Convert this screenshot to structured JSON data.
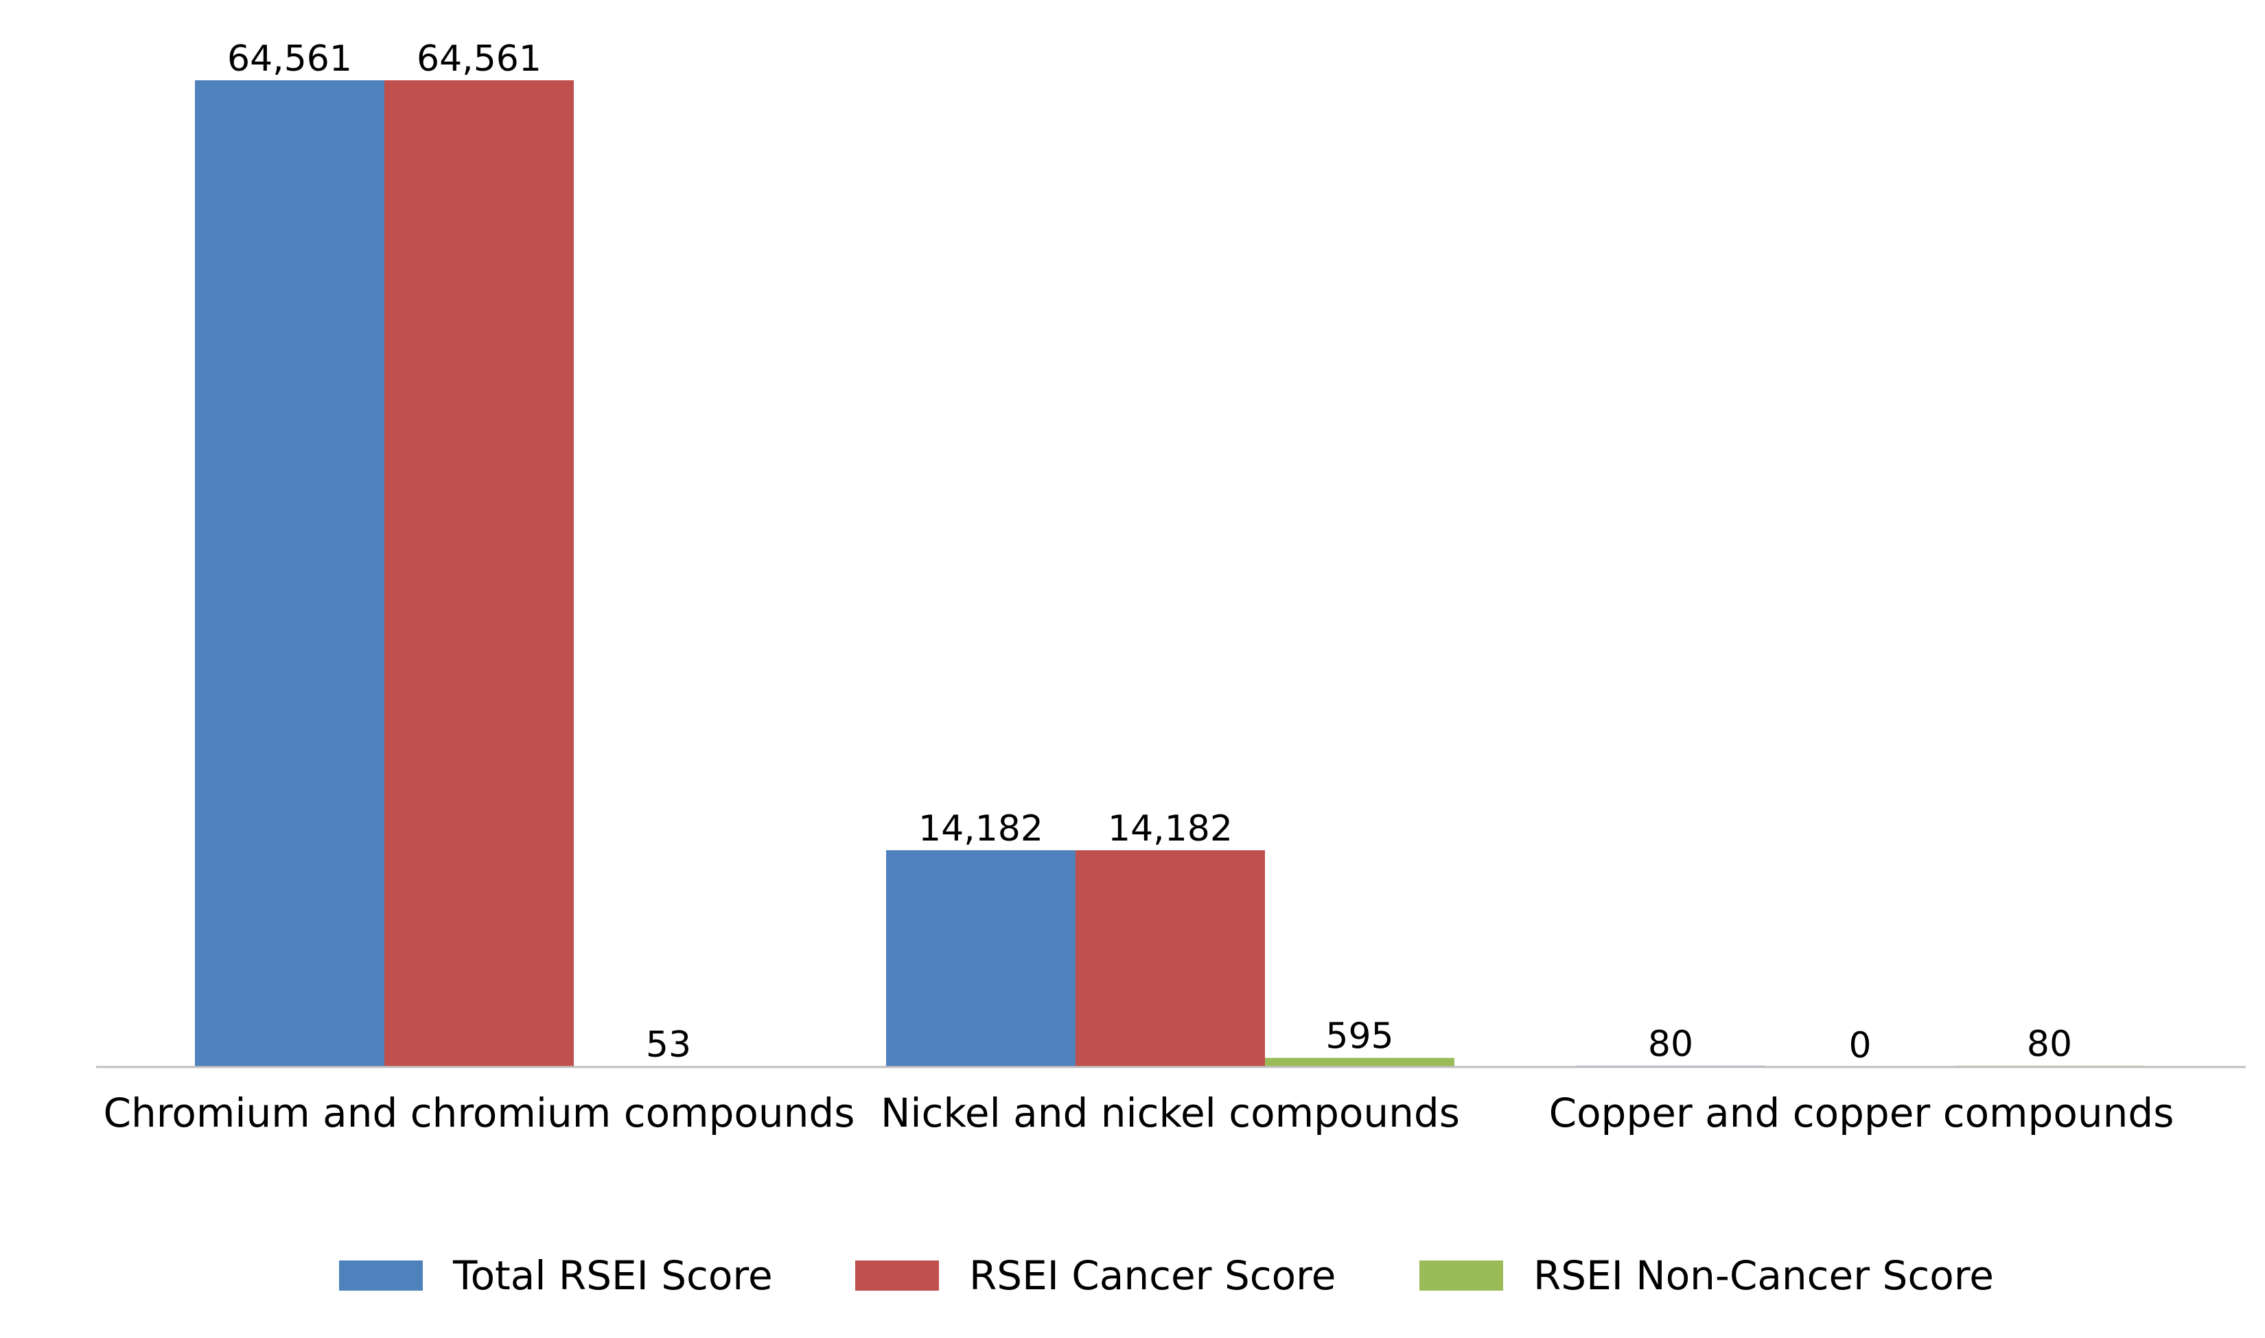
{
  "chart_data": {
    "type": "bar",
    "categories": [
      "Chromium and chromium compounds",
      "Nickel and nickel compounds",
      "Copper and copper compounds"
    ],
    "series": [
      {
        "name": "Total RSEI Score",
        "color": "#4F81BD",
        "values": [
          64561,
          14182,
          80
        ],
        "labels": [
          "64,561",
          "14,182",
          "80"
        ]
      },
      {
        "name": "RSEI Cancer Score",
        "color": "#C0504D",
        "values": [
          64561,
          14182,
          0
        ],
        "labels": [
          "64,561",
          "14,182",
          "0"
        ]
      },
      {
        "name": "RSEI Non-Cancer Score",
        "color": "#9BBB59",
        "values": [
          53,
          595,
          80
        ],
        "labels": [
          "53",
          "595",
          "80"
        ]
      }
    ],
    "ylim": [
      0,
      64561
    ],
    "grid": false,
    "legend_position": "bottom",
    "axis_color": "#BFBFBF"
  }
}
